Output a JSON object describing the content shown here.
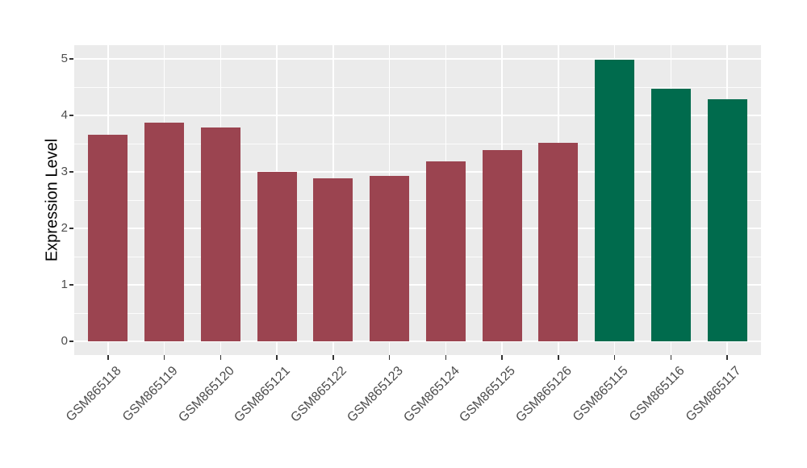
{
  "chart_data": {
    "type": "bar",
    "title": "",
    "xlabel": "",
    "ylabel": "Expression Level",
    "ylim": [
      0,
      5
    ],
    "yticks": [
      0,
      1,
      2,
      3,
      4,
      5
    ],
    "minor_gridlines": [
      0.5,
      1.5,
      2.5,
      3.5,
      4.5
    ],
    "grid": "on",
    "legend_position": "none",
    "panel_background": "#EBEBEB",
    "gridline_color": "#FFFFFF",
    "tick_color": "#333333",
    "axis_text_color": "#4D4D4D",
    "group_colors": {
      "maroon_group": "#9B4450",
      "green_group": "#006B4D"
    },
    "categories": [
      "GSM865118",
      "GSM865119",
      "GSM865120",
      "GSM865121",
      "GSM865122",
      "GSM865123",
      "GSM865124",
      "GSM865125",
      "GSM865126",
      "GSM865115",
      "GSM865116",
      "GSM865117"
    ],
    "values": [
      3.66,
      3.87,
      3.79,
      3.0,
      2.89,
      2.93,
      3.19,
      3.39,
      3.52,
      4.99,
      4.47,
      4.28
    ],
    "bar_colors": [
      "#9B4450",
      "#9B4450",
      "#9B4450",
      "#9B4450",
      "#9B4450",
      "#9B4450",
      "#9B4450",
      "#9B4450",
      "#9B4450",
      "#006B4D",
      "#006B4D",
      "#006B4D"
    ]
  }
}
